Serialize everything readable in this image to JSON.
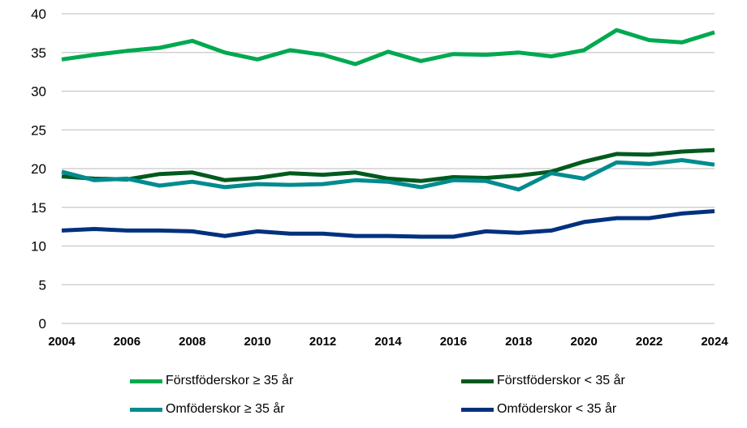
{
  "chart_data": {
    "type": "line",
    "title": "",
    "xlabel": "",
    "ylabel": "",
    "ylim": [
      0,
      40
    ],
    "yticks": [
      "0",
      "5",
      "10",
      "15",
      "20",
      "25",
      "30",
      "35",
      "40"
    ],
    "xticks": [
      "2004",
      "2006",
      "2008",
      "2010",
      "2012",
      "2014",
      "2016",
      "2018",
      "2020",
      "2022",
      "2024"
    ],
    "grid": true,
    "legend_position": "bottom",
    "x": [
      2004,
      2005,
      2006,
      2007,
      2008,
      2009,
      2010,
      2011,
      2012,
      2013,
      2014,
      2015,
      2016,
      2017,
      2018,
      2019,
      2020,
      2021,
      2022,
      2023,
      2024
    ],
    "series": [
      {
        "name": "Förstföderskor  ≥ 35 år",
        "color": "#00A94F",
        "values": [
          34.1,
          34.7,
          35.2,
          35.6,
          36.5,
          35.0,
          34.1,
          35.3,
          34.7,
          33.5,
          35.1,
          33.9,
          34.8,
          34.7,
          35.0,
          34.5,
          35.3,
          37.9,
          36.6,
          36.3,
          37.6
        ]
      },
      {
        "name": "Förstföderskor < 35 år",
        "color": "#005A1E",
        "values": [
          19.0,
          18.7,
          18.6,
          19.3,
          19.5,
          18.5,
          18.8,
          19.4,
          19.2,
          19.5,
          18.7,
          18.4,
          18.9,
          18.8,
          19.1,
          19.6,
          20.9,
          21.9,
          21.8,
          22.2,
          22.4
        ]
      },
      {
        "name": "Omföderskor  ≥ 35 år",
        "color": "#008B8F",
        "values": [
          19.6,
          18.5,
          18.7,
          17.8,
          18.3,
          17.6,
          18.0,
          17.9,
          18.0,
          18.5,
          18.3,
          17.6,
          18.5,
          18.4,
          17.3,
          19.4,
          18.7,
          20.8,
          20.6,
          21.1,
          20.5
        ]
      },
      {
        "name": "Omföderskor < 35 år",
        "color": "#00317F",
        "values": [
          12.0,
          12.2,
          12.0,
          12.0,
          11.9,
          11.3,
          11.9,
          11.6,
          11.6,
          11.3,
          11.3,
          11.2,
          11.2,
          11.9,
          11.7,
          12.0,
          13.1,
          13.6,
          13.6,
          14.2,
          14.5
        ]
      }
    ]
  }
}
